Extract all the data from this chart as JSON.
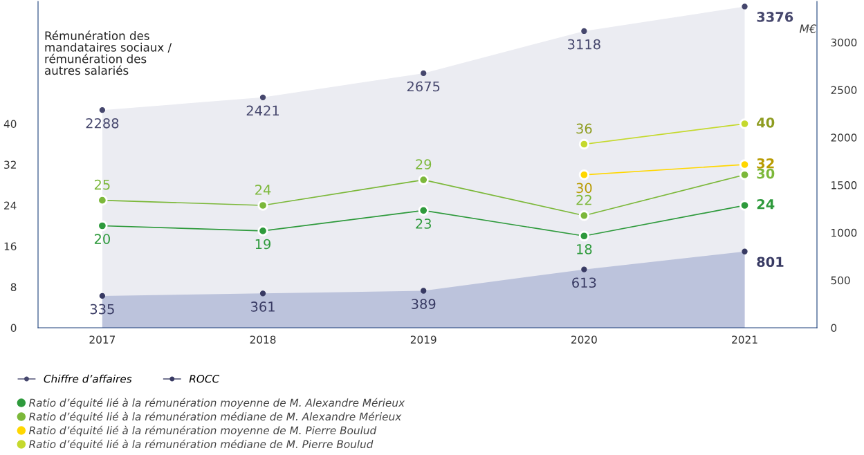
{
  "chart_data": {
    "type": "line",
    "ylabel": "Rémunération des\nmandataires sociaux /\nrémunération des\nautres salariés",
    "y2label": "M€",
    "categories": [
      "2017",
      "2018",
      "2019",
      "2020",
      "2021"
    ],
    "ylim": [
      0,
      64
    ],
    "yticks": [
      0,
      8,
      16,
      24,
      32,
      40
    ],
    "y2lim": [
      0,
      3430
    ],
    "y2ticks": [
      0,
      500,
      1000,
      1500,
      2000,
      2500,
      3000
    ],
    "grid": false,
    "legend": "bottom",
    "marker": "circle",
    "data_labels": true,
    "series": [
      {
        "name": "Chiffre d’affaires",
        "type": "area",
        "axis": "y2",
        "color": "#ebecf2",
        "values": [
          2288,
          2421,
          2675,
          3118,
          3376
        ]
      },
      {
        "name": "ROCC",
        "type": "area",
        "axis": "y2",
        "color": "#bcc3dc",
        "values": [
          335,
          361,
          389,
          613,
          801
        ]
      },
      {
        "name": "Ratio d’équité lié à la rémunération moyenne de M. Alexandre Mérieux",
        "color": "#2e9a3c",
        "values": [
          20,
          19,
          23,
          18,
          24
        ]
      },
      {
        "name": "Ratio d’équité lié à la rémunération médiane de M. Alexandre Mérieux",
        "color": "#7cb83a",
        "values": [
          25,
          24,
          29,
          22,
          30
        ]
      },
      {
        "name": "Ratio d’équité lié à la rémunération moyenne de M. Pierre Boulud",
        "color": "#ffd700",
        "values": [
          null,
          null,
          null,
          30,
          32
        ]
      },
      {
        "name": "Ratio d’équité lié à la rémunération médiane de M. Pierre Boulud",
        "color": "#c5d92d",
        "values": [
          null,
          null,
          null,
          36,
          40
        ]
      }
    ]
  }
}
